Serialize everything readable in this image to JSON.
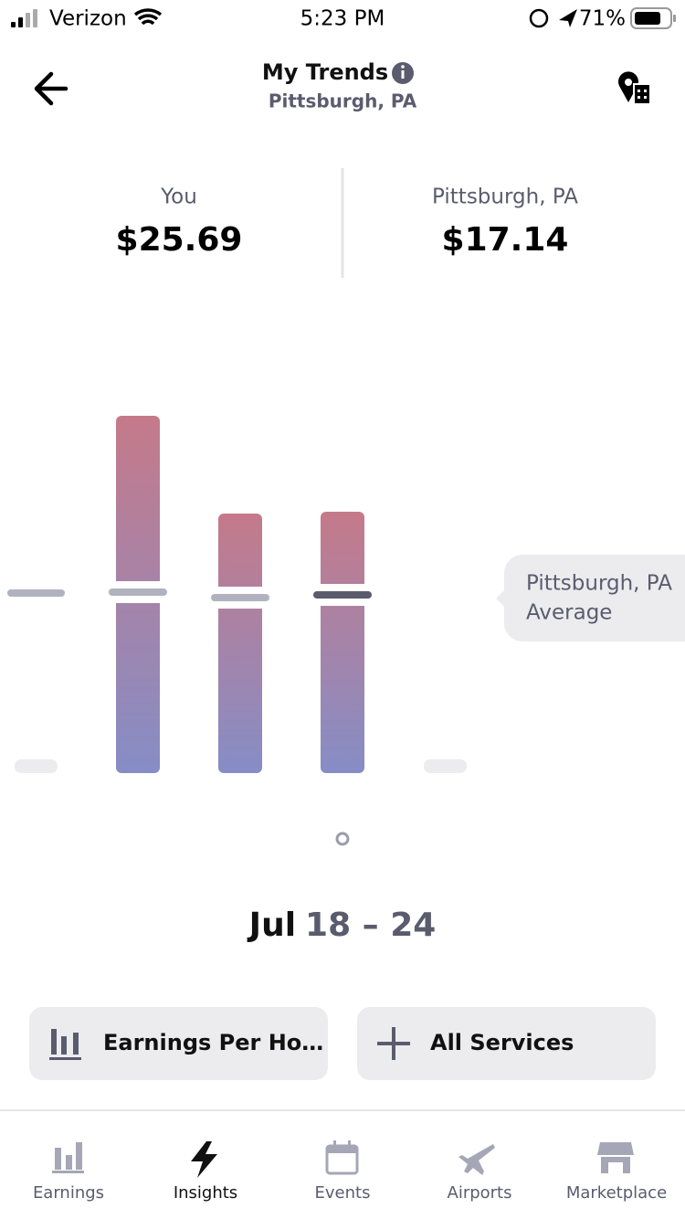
{
  "status_bar": {
    "carrier": "Verizon",
    "time": "5:23 PM",
    "battery": "71%"
  },
  "header": {
    "title": "My Trends",
    "subtitle": "Pittsburgh, PA"
  },
  "comparison": [
    {
      "label": "You",
      "value": "$25.69"
    },
    {
      "label": "Pittsburgh, PA",
      "value": "$17.14"
    }
  ],
  "chart_tooltip": {
    "lines": [
      "Pittsburgh, PA",
      "Average"
    ]
  },
  "date_range": {
    "month": "Jul",
    "days": "18 – 24"
  },
  "filters": [
    "Earnings Per Ho…",
    "All Services"
  ],
  "tabs": [
    "Earnings",
    "Insights",
    "Events",
    "Airports",
    "Marketplace"
  ]
}
